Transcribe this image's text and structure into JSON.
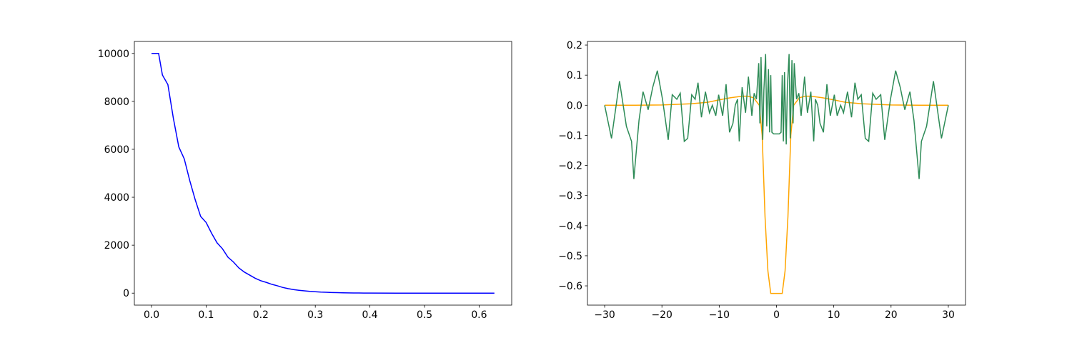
{
  "chart_data": [
    {
      "type": "line",
      "series": [
        {
          "color": "#0000ff",
          "x": [
            0,
            0.01,
            0.013,
            0.02,
            0.03,
            0.04,
            0.05,
            0.06,
            0.07,
            0.08,
            0.09,
            0.1,
            0.11,
            0.12,
            0.13,
            0.14,
            0.15,
            0.16,
            0.17,
            0.18,
            0.19,
            0.2,
            0.21,
            0.22,
            0.23,
            0.24,
            0.25,
            0.26,
            0.27,
            0.28,
            0.29,
            0.3,
            0.31,
            0.32,
            0.33,
            0.34,
            0.35,
            0.36,
            0.37,
            0.38,
            0.39,
            0.4,
            0.45,
            0.5,
            0.55,
            0.6,
            0.628
          ],
          "values": [
            10000,
            10000,
            10000,
            9100,
            8700,
            7300,
            6100,
            5600,
            4700,
            3900,
            3200,
            2950,
            2500,
            2100,
            1850,
            1500,
            1300,
            1050,
            880,
            750,
            620,
            520,
            450,
            370,
            310,
            240,
            190,
            150,
            120,
            95,
            75,
            60,
            45,
            35,
            27,
            20,
            15,
            11,
            8,
            6,
            4,
            3,
            1,
            0,
            0,
            0,
            0
          ]
        }
      ],
      "xlim": [
        -0.0314,
        0.6597
      ],
      "xticks": [
        {
          "value": 0,
          "label": "0.0"
        },
        0.1,
        0.2,
        0.3,
        0.4,
        0.5,
        0.6
      ],
      "ylim": [
        -500,
        10500
      ],
      "yticks": [
        0,
        2000,
        4000,
        6000,
        8000,
        10000
      ]
    },
    {
      "type": "line",
      "series": [
        {
          "color": "#ffa500",
          "x": [
            -30,
            -25,
            -20,
            -15,
            -12,
            -10,
            -8,
            -6,
            -5,
            -4,
            -3,
            -2.5,
            -2,
            -1.5,
            -1,
            0,
            1,
            1.5,
            2,
            2.5,
            3,
            4,
            5,
            6,
            8,
            10,
            12,
            15,
            20,
            25,
            30
          ],
          "values": [
            0,
            0,
            0.001,
            0.005,
            0.01,
            0.018,
            0.025,
            0.03,
            0.03,
            0.025,
            0.0,
            -0.1,
            -0.37,
            -0.55,
            -0.625,
            -0.625,
            -0.625,
            -0.55,
            -0.37,
            -0.1,
            0.0,
            0.025,
            0.03,
            0.03,
            0.025,
            0.018,
            0.01,
            0.005,
            0.001,
            0,
            0
          ]
        },
        {
          "color": "#2e8b57",
          "x": [
            -30,
            -28.8,
            -27.4,
            -26.2,
            -25.3,
            -24.9,
            -24,
            -23.3,
            -22.4,
            -21.6,
            -20.8,
            -19.9,
            -18.9,
            -18.2,
            -17.4,
            -16.8,
            -16.1,
            -15.5,
            -14.8,
            -14.2,
            -13.7,
            -13.1,
            -12.4,
            -11.7,
            -11.2,
            -10.6,
            -10.1,
            -9.4,
            -8.8,
            -8.2,
            -7.6,
            -7.2,
            -6.8,
            -6.5,
            -6,
            -5.4,
            -4.9,
            -4.3,
            -3.9,
            -3.5,
            -3.1,
            -2.9,
            -2.7,
            -2.4,
            -2.2,
            -1.9,
            -1.7,
            -1.4,
            -1.2,
            -1,
            -0.8,
            -0.5,
            0,
            0.5,
            0.8,
            1,
            1.2,
            1.4,
            1.7,
            1.9,
            2.2,
            2.4,
            2.7,
            2.9,
            3.1,
            3.5,
            3.9,
            4.3,
            4.9,
            5.4,
            6,
            6.5,
            6.8,
            7.2,
            7.6,
            8.2,
            8.8,
            9.4,
            10.1,
            10.6,
            11.2,
            11.7,
            12.4,
            13.1,
            13.7,
            14.2,
            14.8,
            15.5,
            16.1,
            16.8,
            17.4,
            18.2,
            18.9,
            19.9,
            20.8,
            21.6,
            22.4,
            23.3,
            24,
            24.9,
            25.3,
            26.2,
            27.4,
            28.8,
            30
          ],
          "values": [
            0,
            -0.11,
            0.08,
            -0.07,
            -0.12,
            -0.245,
            -0.05,
            0.045,
            -0.015,
            0.06,
            0.115,
            0.02,
            -0.115,
            0.035,
            0.02,
            0.04,
            -0.12,
            -0.11,
            0.035,
            0.02,
            0.075,
            -0.04,
            0.045,
            -0.025,
            0,
            -0.035,
            0.035,
            -0.035,
            0.07,
            -0.09,
            -0.06,
            0,
            0.02,
            -0.12,
            0.06,
            -0.025,
            0.095,
            -0.035,
            0.04,
            0.02,
            0.14,
            -0.06,
            0.16,
            -0.115,
            0.05,
            0.17,
            -0.07,
            0.12,
            -0.09,
            0.1,
            -0.09,
            -0.095,
            -0.095,
            -0.095,
            -0.09,
            0.1,
            -0.12,
            0.11,
            -0.13,
            0.06,
            0.17,
            -0.11,
            0.15,
            -0.06,
            0.14,
            0.02,
            0.04,
            -0.035,
            0.095,
            -0.025,
            0.045,
            -0.12,
            0.02,
            0,
            -0.06,
            -0.09,
            0.07,
            -0.035,
            0.035,
            -0.035,
            0,
            -0.025,
            0.045,
            -0.04,
            0.075,
            0.02,
            0.035,
            -0.11,
            -0.12,
            0.04,
            0.02,
            0.035,
            -0.115,
            0.02,
            0.115,
            0.06,
            -0.015,
            0.045,
            -0.05,
            -0.245,
            -0.12,
            -0.07,
            0.08,
            -0.11,
            0
          ]
        }
      ],
      "xlim": [
        -33,
        33
      ],
      "xticks": [
        {
          "value": -30,
          "label": "−30"
        },
        {
          "value": -20,
          "label": "−20"
        },
        {
          "value": -10,
          "label": "−10"
        },
        0,
        10,
        20,
        30
      ],
      "ylim": [
        -0.664,
        0.212
      ],
      "yticks": [
        {
          "value": -0.6,
          "label": "−0.6"
        },
        {
          "value": -0.5,
          "label": "−0.5"
        },
        {
          "value": -0.4,
          "label": "−0.4"
        },
        {
          "value": -0.3,
          "label": "−0.3"
        },
        {
          "value": -0.2,
          "label": "−0.2"
        },
        {
          "value": -0.1,
          "label": "−0.1"
        },
        {
          "value": 0,
          "label": "0.0"
        },
        0.1,
        0.2
      ]
    }
  ]
}
